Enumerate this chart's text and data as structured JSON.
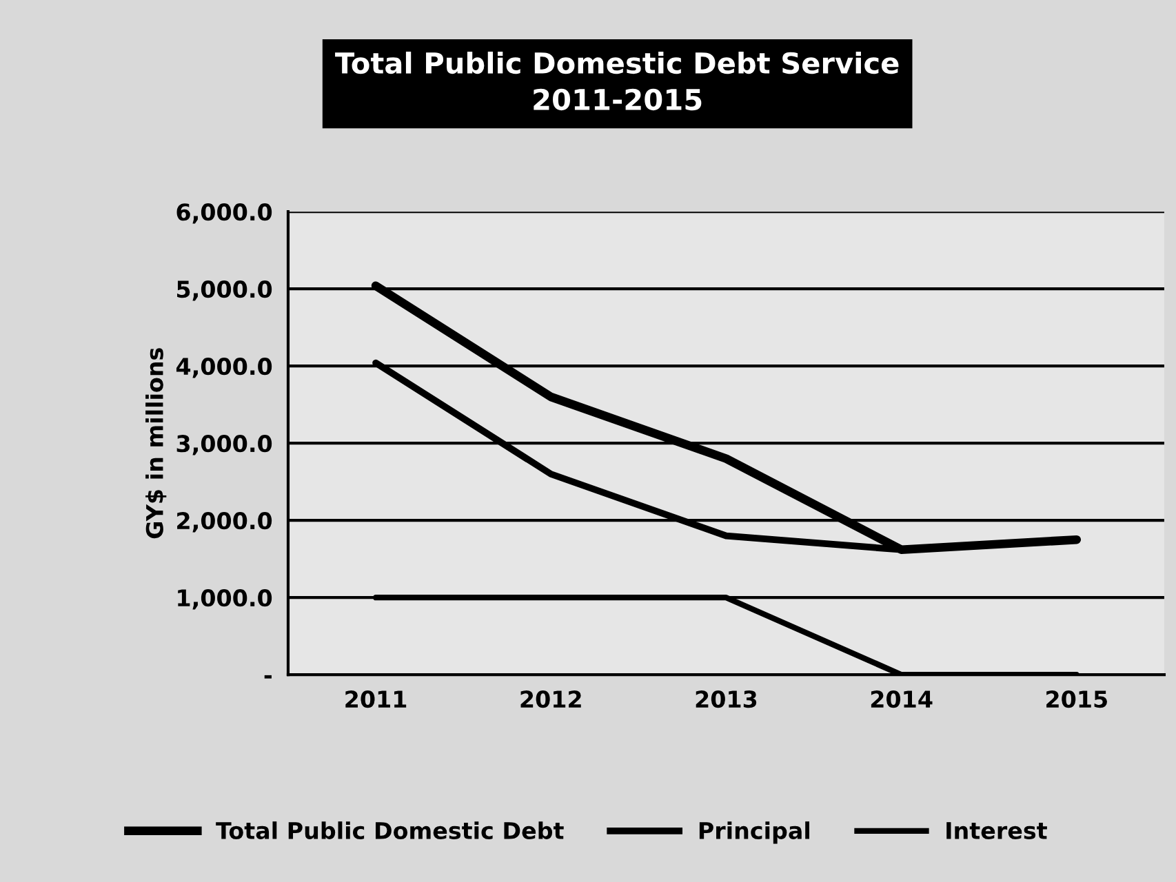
{
  "chart_data": {
    "type": "line",
    "title": "Total Public Domestic Debt Service\n2011-2015",
    "ylabel": "GY$ in millions",
    "categories": [
      "2011",
      "2012",
      "2013",
      "2014",
      "2015"
    ],
    "series": [
      {
        "name": "Total Public Domestic Debt",
        "color": "#000000",
        "values": [
          5040,
          3600,
          2800,
          1620,
          1750
        ]
      },
      {
        "name": "Principal",
        "color": "#000000",
        "values": [
          4040,
          2600,
          1800,
          1620,
          1750
        ]
      },
      {
        "name": "Interest",
        "color": "#000000",
        "values": [
          1000,
          1000,
          1000,
          0,
          0
        ]
      }
    ],
    "ylim": [
      0,
      6000
    ],
    "yticks": [
      {
        "value": 0,
        "label": "-"
      },
      {
        "value": 1000,
        "label": "1,000.0"
      },
      {
        "value": 2000,
        "label": "2,000.0"
      },
      {
        "value": 3000,
        "label": "3,000.0"
      },
      {
        "value": 4000,
        "label": "4,000.0"
      },
      {
        "value": 5000,
        "label": "5,000.0"
      },
      {
        "value": 6000,
        "label": "6,000.0"
      }
    ],
    "grid": "y",
    "legend": "bottom",
    "marker": "none",
    "line_style": "solid"
  }
}
